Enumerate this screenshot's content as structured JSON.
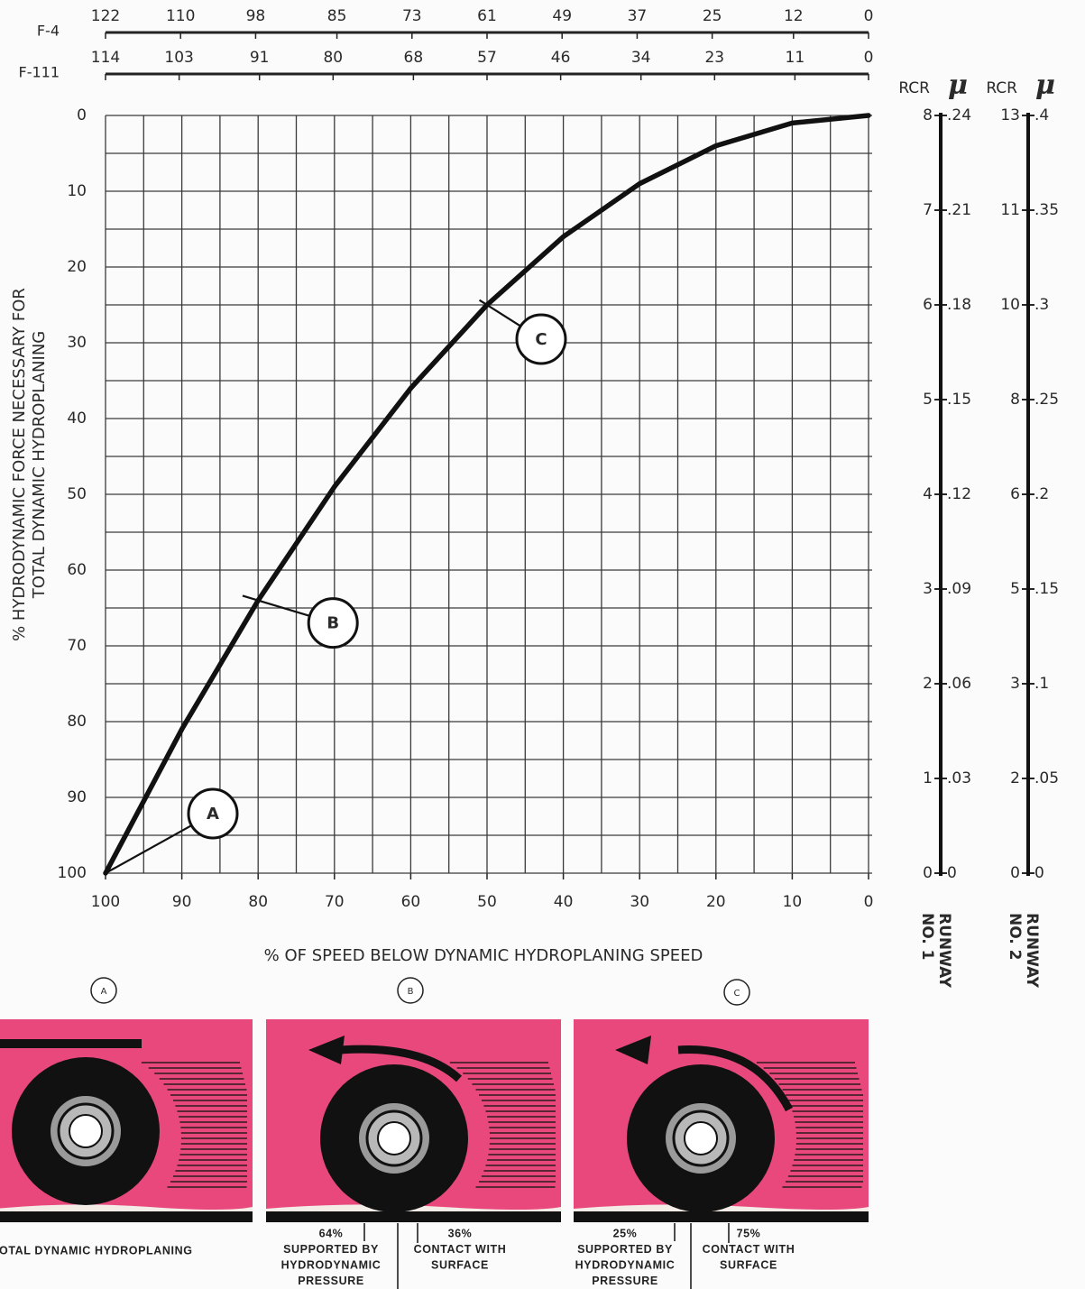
{
  "chart_data": {
    "type": "line",
    "x_title": "% OF SPEED BELOW DYNAMIC HYDROPLANING SPEED",
    "y_title": [
      "% HYDRODYNAMIC FORCE NECESSARY FOR",
      "TOTAL DYNAMIC HYDROPLANING"
    ],
    "x": [
      100,
      90,
      80,
      70,
      60,
      50,
      40,
      30,
      20,
      10,
      0
    ],
    "values": [
      100,
      81,
      64,
      49,
      36,
      25,
      16,
      9,
      4,
      1,
      0
    ],
    "color": "#111111",
    "xlim": [
      100,
      0
    ],
    "xticks": [
      100,
      90,
      80,
      70,
      60,
      50,
      40,
      30,
      20,
      10,
      0
    ],
    "ylim": [
      0,
      100
    ],
    "y_inverted": true,
    "yticks": [
      0,
      10,
      20,
      30,
      40,
      50,
      60,
      70,
      80,
      90,
      100
    ],
    "grid": true,
    "top_axes": [
      {
        "name": "F-4",
        "lim": [
          122,
          0
        ],
        "ticks": [
          122,
          110,
          98,
          85,
          73,
          61,
          49,
          37,
          25,
          12,
          0
        ]
      },
      {
        "name": "F-111",
        "lim": [
          114,
          0
        ],
        "ticks": [
          114,
          103,
          91,
          80,
          68,
          57,
          46,
          34,
          23,
          11,
          0
        ]
      }
    ],
    "annotations": [
      {
        "label": "A",
        "x": 100,
        "y": 100
      },
      {
        "label": "B",
        "x": 80,
        "y": 64
      },
      {
        "label": "C",
        "x": 50,
        "y": 25
      }
    ],
    "scales": [
      {
        "label": [
          "RUNWAY",
          "NO. 1"
        ],
        "rcr_header": "RCR",
        "mu_header": "μ",
        "mu_lim": [
          0,
          0.24
        ],
        "ticks": [
          {
            "rcr": 8,
            "mu": 0.24,
            "mu_label": ".24"
          },
          {
            "rcr": 7,
            "mu": 0.21,
            "mu_label": ".21"
          },
          {
            "rcr": 6,
            "mu": 0.18,
            "mu_label": ".18"
          },
          {
            "rcr": 5,
            "mu": 0.15,
            "mu_label": ".15"
          },
          {
            "rcr": 4,
            "mu": 0.12,
            "mu_label": ".12"
          },
          {
            "rcr": 3,
            "mu": 0.09,
            "mu_label": ".09"
          },
          {
            "rcr": 2,
            "mu": 0.06,
            "mu_label": ".06"
          },
          {
            "rcr": 1,
            "mu": 0.03,
            "mu_label": ".03"
          },
          {
            "rcr": 0,
            "mu": 0,
            "mu_label": "0"
          }
        ]
      },
      {
        "label": [
          "RUNWAY",
          "NO. 2"
        ],
        "rcr_header": "RCR",
        "mu_header": "μ",
        "mu_lim": [
          0,
          0.4
        ],
        "ticks": [
          {
            "rcr": 13,
            "mu": 0.4,
            "mu_label": ".4"
          },
          {
            "rcr": 11,
            "mu": 0.35,
            "mu_label": ".35"
          },
          {
            "rcr": 10,
            "mu": 0.3,
            "mu_label": ".3"
          },
          {
            "rcr": 8,
            "mu": 0.25,
            "mu_label": ".25"
          },
          {
            "rcr": 6,
            "mu": 0.2,
            "mu_label": ".2"
          },
          {
            "rcr": 5,
            "mu": 0.15,
            "mu_label": ".15"
          },
          {
            "rcr": 3,
            "mu": 0.1,
            "mu_label": ".1"
          },
          {
            "rcr": 2,
            "mu": 0.05,
            "mu_label": ".05"
          },
          {
            "rcr": 0,
            "mu": 0,
            "mu_label": "0"
          }
        ]
      }
    ]
  },
  "illustrations": [
    {
      "marker": "A",
      "caption": "TOTAL DYNAMIC HYDROPLANING"
    },
    {
      "marker": "B",
      "left": [
        "64%",
        "SUPPORTED BY",
        "HYDRODYNAMIC",
        "PRESSURE"
      ],
      "right": [
        "36%",
        "CONTACT WITH",
        "SURFACE"
      ]
    },
    {
      "marker": "C",
      "left": [
        "25%",
        "SUPPORTED BY",
        "HYDRODYNAMIC",
        "PRESSURE"
      ],
      "right": [
        "75%",
        "CONTACT WITH",
        "SURFACE"
      ]
    }
  ]
}
